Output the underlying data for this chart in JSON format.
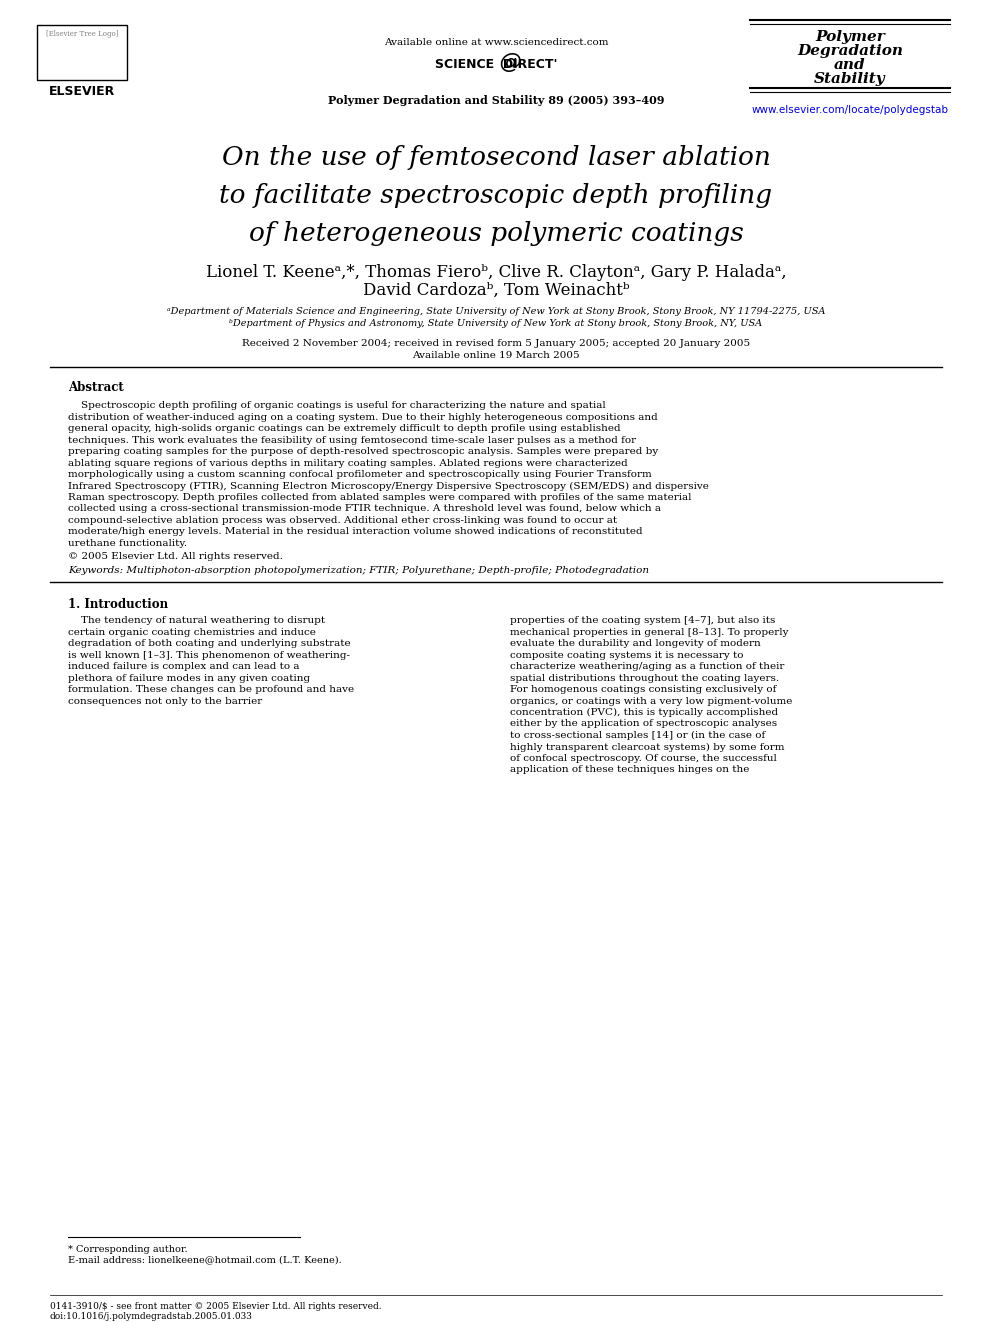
{
  "bg_color": "#ffffff",
  "header": {
    "available_online": "Available online at www.sciencedirect.com",
    "journal_info": "Polymer Degradation and Stability 89 (2005) 393–409",
    "journal_name_lines": [
      "Polymer",
      "Degradation",
      "and",
      "Stability"
    ],
    "journal_url": "www.elsevier.com/locate/polydegstab"
  },
  "title_lines": [
    "On the use of femtosecond laser ablation",
    "to facilitate spectroscopic depth profiling",
    "of heterogeneous polymeric coatings"
  ],
  "authors": "Lionel T. Keeneᵃ,*, Thomas Fieroᵇ, Clive R. Claytonᵃ, Gary P. Haladaᵃ,",
  "authors2": "David Cardozaᵇ, Tom Weinachtᵇ",
  "affil1": "ᵃDepartment of Materials Science and Engineering, State University of New York at Stony Brook, Stony Brook, NY 11794-2275, USA",
  "affil2": "ᵇDepartment of Physics and Astronomy, State University of New York at Stony brook, Stony Brook, NY, USA",
  "received": "Received 2 November 2004; received in revised form 5 January 2005; accepted 20 January 2005",
  "available": "Available online 19 March 2005",
  "abstract_title": "Abstract",
  "abstract_text": "    Spectroscopic depth profiling of organic coatings is useful for characterizing the nature and spatial distribution of weather-induced aging on a coating system. Due to their highly heterogeneous compositions and general opacity, high-solids organic coatings can be extremely difficult to depth profile using established techniques. This work evaluates the feasibility of using femtosecond time-scale laser pulses as a method for preparing coating samples for the purpose of depth-resolved spectroscopic analysis. Samples were prepared by ablating square regions of various depths in military coating samples. Ablated regions were characterized morphologically using a custom scanning confocal profilometer and spectroscopically using Fourier Transform Infrared Spectroscopy (FTIR), Scanning Electron Microscopy/Energy Dispersive Spectroscopy (SEM/EDS) and dispersive Raman spectroscopy. Depth profiles collected from ablated samples were compared with profiles of the same material collected using a cross-sectional transmission-mode FTIR technique. A threshold level was found, below which a compound-selective ablation process was observed. Additional ether cross-linking was found to occur at moderate/high energy levels. Material in the residual interaction volume showed indications of reconstituted urethane functionality.",
  "copyright": "© 2005 Elsevier Ltd. All rights reserved.",
  "keywords": "Keywords: Multiphoton-absorption photopolymerization; FTIR; Polyurethane; Depth-profile; Photodegradation",
  "section1_title": "1. Introduction",
  "section1_col1": "    The tendency of natural weathering to disrupt certain organic coating chemistries and induce degradation of both coating and underlying substrate is well known [1–3]. This phenomenon of weathering-induced failure is complex and can lead to a plethora of failure modes in any given coating formulation. These changes can be profound and have consequences not only to the barrier",
  "section1_col2": "properties of the coating system [4–7], but also its mechanical properties in general [8–13]. To properly evaluate the durability and longevity of modern composite coating systems it is necessary to characterize weathering/aging as a function of their spatial distributions throughout the coating layers. For homogenous coatings consisting exclusively of organics, or coatings with a very low pigment-volume concentration (PVC), this is typically accomplished either by the application of spectroscopic analyses to cross-sectional samples [14] or (in the case of highly transparent clearcoat systems) by some form of confocal spectroscopy. Of course, the successful application of these techniques hinges on the",
  "footnote_star": "* Corresponding author.",
  "footnote_email": "E-mail address: lionelkeene@hotmail.com (L.T. Keene).",
  "footer1": "0141-3910/$ - see front matter © 2005 Elsevier Ltd. All rights reserved.",
  "footer2": "doi:10.1016/j.polymdegradstab.2005.01.033"
}
